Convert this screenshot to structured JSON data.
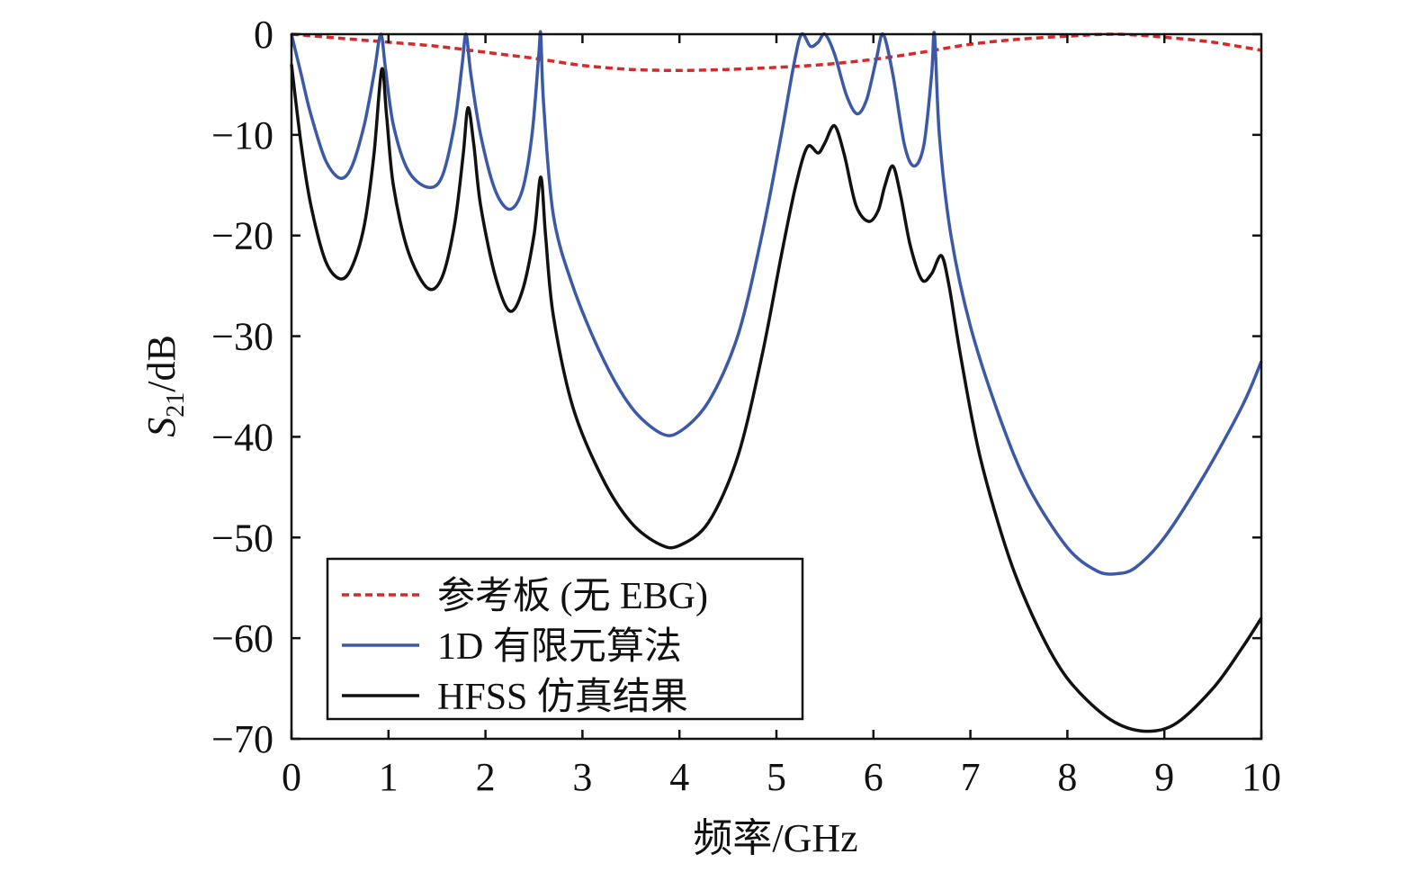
{
  "chart_data": {
    "type": "line",
    "xlabel": "频率/GHz",
    "ylabel": {
      "main": "S",
      "sub": "21",
      "rest": "/dB"
    },
    "xlim": [
      0,
      10
    ],
    "ylim": [
      -70,
      0
    ],
    "xticks": [
      "0",
      "1",
      "2",
      "3",
      "4",
      "5",
      "6",
      "7",
      "8",
      "9",
      "10"
    ],
    "yticks": [
      "0",
      "−10",
      "−20",
      "−30",
      "−40",
      "−50",
      "−60",
      "−70"
    ],
    "grid": false,
    "legend_position": "bottom-left",
    "series": [
      {
        "name": "参考板 (无 EBG)",
        "color": "#d42a2a",
        "style": "dashed",
        "points": [
          [
            0,
            0
          ],
          [
            0.5,
            -0.4
          ],
          [
            1,
            -0.8
          ],
          [
            1.5,
            -1.2
          ],
          [
            2,
            -1.8
          ],
          [
            2.5,
            -2.4
          ],
          [
            3,
            -3.1
          ],
          [
            3.5,
            -3.5
          ],
          [
            4,
            -3.6
          ],
          [
            4.5,
            -3.5
          ],
          [
            5,
            -3.3
          ],
          [
            5.5,
            -3.0
          ],
          [
            6,
            -2.5
          ],
          [
            6.5,
            -1.8
          ],
          [
            7,
            -1.0
          ],
          [
            7.5,
            -0.5
          ],
          [
            8,
            -0.2
          ],
          [
            8.5,
            0
          ],
          [
            9,
            -0.3
          ],
          [
            9.5,
            -0.8
          ],
          [
            10,
            -1.6
          ]
        ]
      },
      {
        "name": "1D 有限元算法",
        "color": "#3c59a8",
        "style": "solid",
        "points": [
          [
            0,
            0
          ],
          [
            0.1,
            -4
          ],
          [
            0.2,
            -8
          ],
          [
            0.35,
            -12.5
          ],
          [
            0.5,
            -14.3
          ],
          [
            0.62,
            -13.2
          ],
          [
            0.75,
            -9
          ],
          [
            0.85,
            -4
          ],
          [
            0.92,
            0
          ],
          [
            0.97,
            -3.5
          ],
          [
            1.05,
            -9
          ],
          [
            1.2,
            -13.5
          ],
          [
            1.4,
            -15.2
          ],
          [
            1.55,
            -14.2
          ],
          [
            1.68,
            -9
          ],
          [
            1.76,
            -3
          ],
          [
            1.8,
            0
          ],
          [
            1.85,
            -4
          ],
          [
            1.95,
            -10
          ],
          [
            2.1,
            -15.5
          ],
          [
            2.25,
            -17.4
          ],
          [
            2.38,
            -15.5
          ],
          [
            2.48,
            -10
          ],
          [
            2.55,
            -2
          ],
          [
            2.57,
            0
          ],
          [
            2.6,
            -7
          ],
          [
            2.7,
            -18
          ],
          [
            2.9,
            -25
          ],
          [
            3.2,
            -32
          ],
          [
            3.5,
            -37
          ],
          [
            3.8,
            -39.6
          ],
          [
            4.0,
            -39.5
          ],
          [
            4.3,
            -36.5
          ],
          [
            4.6,
            -30
          ],
          [
            4.85,
            -20
          ],
          [
            5.05,
            -10
          ],
          [
            5.18,
            -3
          ],
          [
            5.26,
            0
          ],
          [
            5.35,
            -1.2
          ],
          [
            5.43,
            -0.8
          ],
          [
            5.5,
            0
          ],
          [
            5.6,
            -2
          ],
          [
            5.72,
            -6
          ],
          [
            5.83,
            -7.9
          ],
          [
            5.93,
            -6.5
          ],
          [
            6.03,
            -2.5
          ],
          [
            6.1,
            0
          ],
          [
            6.2,
            -4
          ],
          [
            6.32,
            -11
          ],
          [
            6.42,
            -13.1
          ],
          [
            6.52,
            -11
          ],
          [
            6.6,
            -4
          ],
          [
            6.63,
            0
          ],
          [
            6.68,
            -10
          ],
          [
            6.8,
            -20
          ],
          [
            7.0,
            -29
          ],
          [
            7.3,
            -38
          ],
          [
            7.6,
            -45
          ],
          [
            8.0,
            -51
          ],
          [
            8.3,
            -53.3
          ],
          [
            8.5,
            -53.6
          ],
          [
            8.7,
            -53
          ],
          [
            9.0,
            -50
          ],
          [
            9.4,
            -44
          ],
          [
            9.8,
            -37
          ],
          [
            10,
            -32.5
          ]
        ]
      },
      {
        "name": "HFSS 仿真结果",
        "color": "#111111",
        "style": "solid",
        "points": [
          [
            0,
            -3
          ],
          [
            0.1,
            -11
          ],
          [
            0.2,
            -17
          ],
          [
            0.35,
            -22.5
          ],
          [
            0.5,
            -24.3
          ],
          [
            0.62,
            -23.2
          ],
          [
            0.75,
            -19
          ],
          [
            0.85,
            -12
          ],
          [
            0.93,
            -3.5
          ],
          [
            0.98,
            -8
          ],
          [
            1.05,
            -15
          ],
          [
            1.2,
            -21.5
          ],
          [
            1.4,
            -25.2
          ],
          [
            1.55,
            -24.2
          ],
          [
            1.68,
            -19
          ],
          [
            1.77,
            -12
          ],
          [
            1.82,
            -7.3
          ],
          [
            1.88,
            -11
          ],
          [
            1.95,
            -17
          ],
          [
            2.1,
            -24
          ],
          [
            2.25,
            -27.5
          ],
          [
            2.38,
            -25.5
          ],
          [
            2.5,
            -20
          ],
          [
            2.57,
            -14.2
          ],
          [
            2.62,
            -20
          ],
          [
            2.7,
            -28
          ],
          [
            2.9,
            -37
          ],
          [
            3.2,
            -44
          ],
          [
            3.5,
            -48.5
          ],
          [
            3.8,
            -50.7
          ],
          [
            4.0,
            -50.8
          ],
          [
            4.3,
            -48.5
          ],
          [
            4.6,
            -42
          ],
          [
            4.85,
            -32
          ],
          [
            5.05,
            -22
          ],
          [
            5.2,
            -15
          ],
          [
            5.32,
            -11.2
          ],
          [
            5.43,
            -11.8
          ],
          [
            5.5,
            -10.8
          ],
          [
            5.6,
            -9.1
          ],
          [
            5.7,
            -12
          ],
          [
            5.82,
            -17
          ],
          [
            5.95,
            -18.6
          ],
          [
            6.05,
            -17.5
          ],
          [
            6.12,
            -15
          ],
          [
            6.2,
            -13.1
          ],
          [
            6.28,
            -16
          ],
          [
            6.38,
            -21
          ],
          [
            6.5,
            -24.4
          ],
          [
            6.6,
            -23.8
          ],
          [
            6.7,
            -22
          ],
          [
            6.78,
            -25
          ],
          [
            6.9,
            -32
          ],
          [
            7.1,
            -42
          ],
          [
            7.4,
            -52
          ],
          [
            7.7,
            -59
          ],
          [
            8.0,
            -64
          ],
          [
            8.4,
            -67.8
          ],
          [
            8.75,
            -69.2
          ],
          [
            9.1,
            -68.6
          ],
          [
            9.5,
            -65
          ],
          [
            9.8,
            -61
          ],
          [
            10,
            -58
          ]
        ]
      }
    ]
  }
}
